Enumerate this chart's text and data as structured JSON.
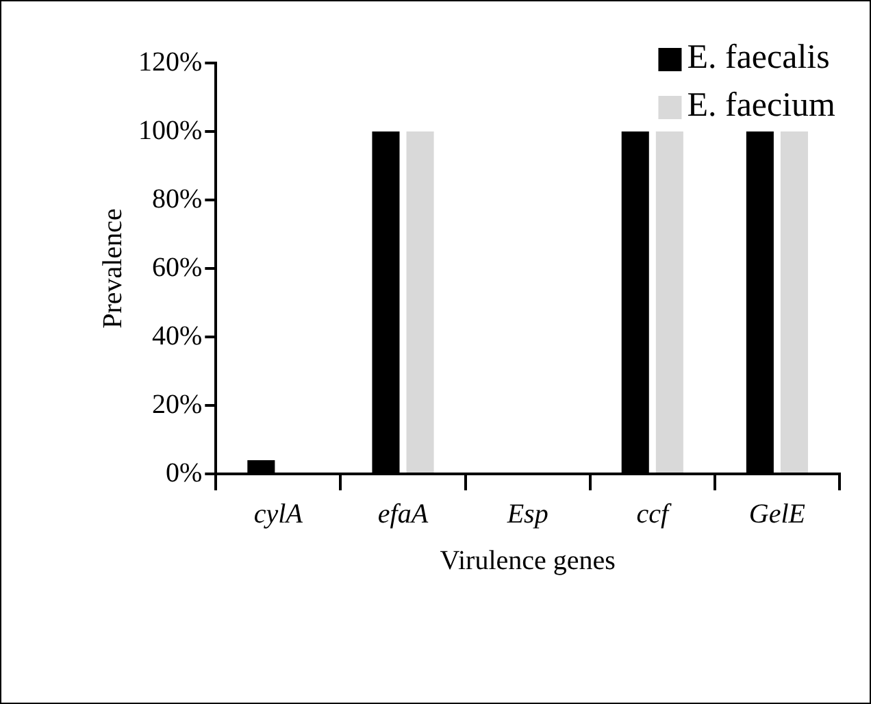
{
  "chart_data": {
    "type": "bar",
    "xlabel": "Virulence genes",
    "ylabel": "Prevalence",
    "categories": [
      "cylA",
      "efaA",
      "Esp",
      "ccf",
      "GelE"
    ],
    "series": [
      {
        "name": "E. faecalis",
        "color": "#000000",
        "values": [
          4,
          100,
          0,
          100,
          100
        ]
      },
      {
        "name": "E. faecium",
        "color": "#d9d9d9",
        "values": [
          0,
          100,
          0,
          100,
          100
        ]
      }
    ],
    "ylim": [
      0,
      120
    ],
    "yticks": [
      {
        "value": 0,
        "label": "0%"
      },
      {
        "value": 20,
        "label": "20%"
      },
      {
        "value": 40,
        "label": "40%"
      },
      {
        "value": 60,
        "label": "60%"
      },
      {
        "value": 80,
        "label": "80%"
      },
      {
        "value": 100,
        "label": "100%"
      },
      {
        "value": 120,
        "label": "120%"
      }
    ],
    "grid": false,
    "legend": "top right"
  }
}
